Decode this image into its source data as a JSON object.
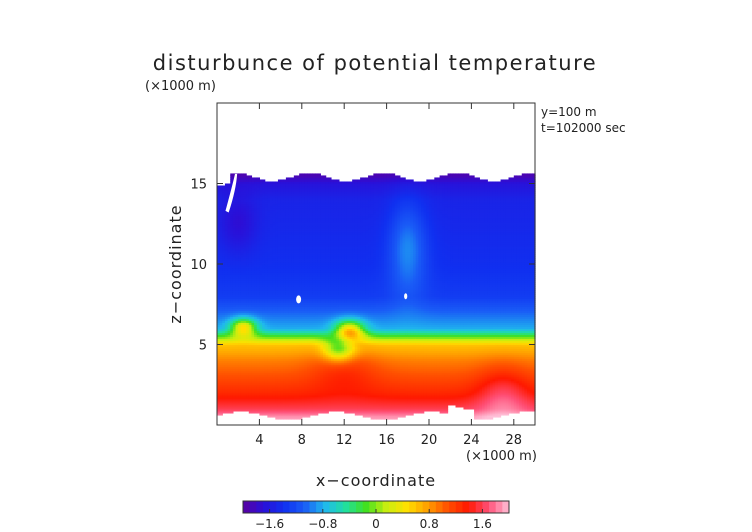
{
  "chart_data": {
    "type": "heatmap",
    "title": "disturbunce of potential temperature",
    "y_unit_label": "(×1000 m)",
    "x_unit_label": "(×1000 m)",
    "xlabel": "x−coordinate",
    "ylabel": "z−coordinate",
    "annotations": [
      "y=100 m",
      "t=102000 sec"
    ],
    "xlim": [
      0,
      30
    ],
    "ylim": [
      0,
      20
    ],
    "x_ticks": [
      4,
      8,
      12,
      16,
      20,
      24,
      28
    ],
    "x_tick_labels": [
      "4",
      "8",
      "12",
      "16",
      "20",
      "24",
      "28"
    ],
    "y_ticks": [
      5,
      10,
      15
    ],
    "y_tick_labels": [
      "5",
      "10",
      "15"
    ],
    "colorbar": {
      "range": [
        -2.0,
        2.0
      ],
      "ticks": [
        -1.6,
        -0.8,
        0,
        0.8,
        1.6
      ],
      "tick_labels": [
        "−1.6",
        "−0.8",
        "0",
        "0.8",
        "1.6"
      ],
      "colors": [
        "#5a00a0",
        "#2a10d8",
        "#1030f0",
        "#1a5cf6",
        "#20b8ee",
        "#20e0a0",
        "#40e020",
        "#c8ee10",
        "#ffe000",
        "#ffa000",
        "#ff5000",
        "#ff1800",
        "#ff5078",
        "#ffc0d8"
      ]
    },
    "field_profile": {
      "z": [
        0.5,
        1,
        2,
        3,
        4,
        5,
        6,
        8,
        10,
        12,
        14,
        15,
        15.5
      ],
      "value": [
        1.9,
        1.6,
        1.3,
        1.1,
        0.9,
        0.6,
        -0.8,
        -1.3,
        -1.4,
        -1.45,
        -1.5,
        -1.65,
        -1.9
      ]
    }
  }
}
